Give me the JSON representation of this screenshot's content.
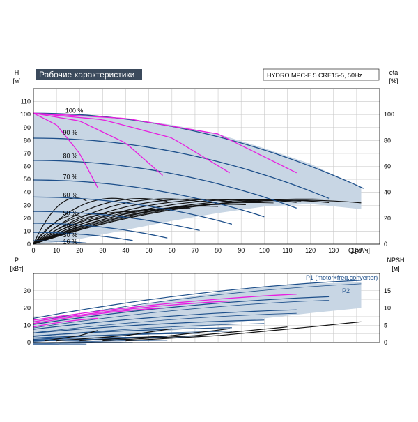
{
  "title": "Рабочие характеристики",
  "pump_model": "HYDRO MPC-E 5 CRE15-5, 50Hz",
  "colors": {
    "navy": "#1d4f8a",
    "magenta": "#e81ee0",
    "black": "#111111",
    "area": "#c8d6e4",
    "title_bg": "#3b4a5c"
  },
  "chart_data": [
    {
      "type": "line",
      "name": "head",
      "xlabel": "Q [м³/ч]",
      "ylabel": "H [м]",
      "y2label": "eta [%]",
      "xlim": [
        0,
        150
      ],
      "ylim": [
        0,
        120
      ],
      "y2lim": [
        0,
        120
      ],
      "x_ticks": [
        0,
        10,
        20,
        30,
        40,
        50,
        60,
        70,
        80,
        90,
        100,
        110,
        120,
        130,
        140
      ],
      "y_ticks": [
        0,
        10,
        20,
        30,
        40,
        50,
        60,
        70,
        80,
        90,
        100,
        110
      ],
      "y2_ticks": [
        0,
        20,
        40,
        60,
        80,
        100
      ],
      "grid": true,
      "speed_labels": [
        {
          "text": "100 %",
          "x": 9,
          "y": 103
        },
        {
          "text": "90 %",
          "x": 8,
          "y": 86
        },
        {
          "text": "80 %",
          "x": 8,
          "y": 68
        },
        {
          "text": "70 %",
          "x": 8,
          "y": 52
        },
        {
          "text": "60 %",
          "x": 8,
          "y": 38
        },
        {
          "text": "50 %",
          "x": 8,
          "y": 24
        },
        {
          "text": "40 %",
          "x": 8,
          "y": 14
        },
        {
          "text": "30 %",
          "x": 8,
          "y": 7
        },
        {
          "text": "16 %",
          "x": 8,
          "y": 2
        }
      ],
      "envelope": [
        [
          0,
          101
        ],
        [
          20,
          100
        ],
        [
          40,
          97
        ],
        [
          60,
          92
        ],
        [
          80,
          85
        ],
        [
          100,
          74
        ],
        [
          120,
          62
        ],
        [
          142,
          43
        ],
        [
          142,
          27
        ],
        [
          120,
          31
        ],
        [
          100,
          29
        ],
        [
          80,
          24
        ],
        [
          60,
          18
        ],
        [
          40,
          11
        ],
        [
          20,
          4
        ],
        [
          5,
          0.5
        ],
        [
          0,
          0
        ]
      ],
      "navy_curves": [
        {
          "k": 1.0,
          "qmax": 143
        },
        {
          "k": 0.9,
          "qmax": 128
        },
        {
          "k": 0.8,
          "qmax": 114
        },
        {
          "k": 0.7,
          "qmax": 100
        },
        {
          "k": 0.6,
          "qmax": 86
        },
        {
          "k": 0.5,
          "qmax": 72
        },
        {
          "k": 0.4,
          "qmax": 58
        },
        {
          "k": 0.3,
          "qmax": 43
        },
        {
          "k": 0.16,
          "qmax": 23
        }
      ],
      "magenta_curves": [
        {
          "x": [
            0,
            10,
            20,
            28
          ],
          "y": [
            101,
            92,
            70,
            43
          ]
        },
        {
          "x": [
            0,
            20,
            40,
            56
          ],
          "y": [
            101,
            95,
            78,
            53
          ]
        },
        {
          "x": [
            0,
            30,
            60,
            85
          ],
          "y": [
            101,
            96,
            82,
            55
          ]
        },
        {
          "x": [
            0,
            40,
            80,
            114
          ],
          "y": [
            101,
            97,
            85,
            55
          ]
        }
      ],
      "eta_curves": [
        {
          "k": 1.0,
          "qmax": 142
        },
        {
          "k": 0.9,
          "qmax": 128
        },
        {
          "k": 0.8,
          "qmax": 114
        },
        {
          "k": 0.7,
          "qmax": 100
        },
        {
          "k": 0.6,
          "qmax": 86
        },
        {
          "k": 0.5,
          "qmax": 72
        },
        {
          "k": 0.4,
          "qmax": 58
        },
        {
          "k": 0.3,
          "qmax": 43
        },
        {
          "k": 0.16,
          "qmax": 23
        }
      ]
    },
    {
      "type": "line",
      "name": "power_npsh",
      "xlabel": "",
      "ylabel": "P [кВт]",
      "y2label": "NPSH [м]",
      "xlim": [
        0,
        150
      ],
      "ylim": [
        0,
        40
      ],
      "y2lim": [
        0,
        20
      ],
      "y_ticks": [
        0,
        10,
        20,
        30
      ],
      "y2_ticks": [
        0,
        5,
        10,
        15
      ],
      "grid": true,
      "series_labels": [
        "P1 (motor+freq.converter)",
        "P2"
      ],
      "envelope": [
        [
          0,
          13
        ],
        [
          20,
          16
        ],
        [
          40,
          20
        ],
        [
          60,
          25
        ],
        [
          80,
          29
        ],
        [
          100,
          32
        ],
        [
          120,
          34
        ],
        [
          142,
          35
        ],
        [
          142,
          20
        ],
        [
          120,
          17
        ],
        [
          100,
          14
        ],
        [
          80,
          10
        ],
        [
          60,
          7
        ],
        [
          40,
          4
        ],
        [
          20,
          2
        ],
        [
          0,
          1
        ]
      ],
      "p1_curves": [
        {
          "k": 1.0,
          "qmax": 142
        },
        {
          "k": 0.9,
          "qmax": 128
        },
        {
          "k": 0.8,
          "qmax": 114
        },
        {
          "k": 0.7,
          "qmax": 100
        },
        {
          "k": 0.6,
          "qmax": 86
        },
        {
          "k": 0.5,
          "qmax": 72
        },
        {
          "k": 0.4,
          "qmax": 58
        },
        {
          "k": 0.3,
          "qmax": 43
        },
        {
          "k": 0.16,
          "qmax": 23
        }
      ],
      "magenta_curves": [
        {
          "x": [
            0,
            28
          ],
          "y": [
            9,
            14
          ]
        },
        {
          "x": [
            0,
            56
          ],
          "y": [
            11,
            20
          ]
        },
        {
          "x": [
            0,
            85
          ],
          "y": [
            12,
            24
          ]
        },
        {
          "x": [
            0,
            114
          ],
          "y": [
            13,
            28
          ]
        }
      ],
      "npsh_curves": [
        {
          "x": [
            40,
            80,
            120,
            142
          ],
          "y": [
            0.5,
            2,
            4.5,
            6
          ]
        },
        {
          "x": [
            30,
            70,
            110
          ],
          "y": [
            0.5,
            2,
            4.5
          ]
        },
        {
          "x": [
            20,
            60,
            85
          ],
          "y": [
            0.5,
            2,
            4
          ]
        },
        {
          "x": [
            10,
            40,
            60
          ],
          "y": [
            0.5,
            2,
            4
          ]
        },
        {
          "x": [
            5,
            20,
            28
          ],
          "y": [
            0.5,
            2,
            3.5
          ]
        }
      ]
    }
  ]
}
